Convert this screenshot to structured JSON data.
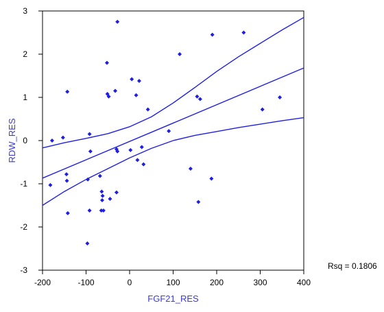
{
  "chart_data": {
    "type": "scatter",
    "xlabel": "FGF21_RES",
    "ylabel": "RDW_RES",
    "xlim": [
      -200,
      400
    ],
    "ylim": [
      -3,
      3
    ],
    "x_ticks": [
      -200,
      -100,
      0,
      100,
      200,
      300,
      400
    ],
    "x_tick_labels": [
      "-200",
      "-100",
      "0",
      "100",
      "200",
      "300",
      "400"
    ],
    "y_ticks": [
      -3,
      -2,
      -1,
      0,
      1,
      2,
      3
    ],
    "y_tick_labels": [
      "-3",
      "-2",
      "-1",
      "0",
      "1",
      "2",
      "3"
    ],
    "annotation": "Rsq = 0.1806",
    "colors": {
      "points": "#1f1fe0",
      "lines": "#1f1fe0",
      "axis_title": "#3a3ad8",
      "axes": "#000000"
    },
    "points": [
      {
        "x": -28,
        "y": 2.75
      },
      {
        "x": 190,
        "y": 2.45
      },
      {
        "x": 262,
        "y": 2.5
      },
      {
        "x": 115,
        "y": 2.0
      },
      {
        "x": -52,
        "y": 1.8
      },
      {
        "x": 5,
        "y": 1.42
      },
      {
        "x": 22,
        "y": 1.38
      },
      {
        "x": -143,
        "y": 1.13
      },
      {
        "x": -33,
        "y": 1.15
      },
      {
        "x": -51,
        "y": 1.08
      },
      {
        "x": -48,
        "y": 1.02
      },
      {
        "x": 15,
        "y": 1.05
      },
      {
        "x": 155,
        "y": 1.02
      },
      {
        "x": 162,
        "y": 0.96
      },
      {
        "x": 42,
        "y": 0.72
      },
      {
        "x": 305,
        "y": 0.72
      },
      {
        "x": 345,
        "y": 1.0
      },
      {
        "x": 90,
        "y": 0.22
      },
      {
        "x": -178,
        "y": 0.0
      },
      {
        "x": -153,
        "y": 0.07
      },
      {
        "x": -92,
        "y": 0.15
      },
      {
        "x": -90,
        "y": -0.25
      },
      {
        "x": -30,
        "y": -0.2
      },
      {
        "x": -28,
        "y": -0.25
      },
      {
        "x": 2,
        "y": -0.22
      },
      {
        "x": 28,
        "y": -0.15
      },
      {
        "x": 18,
        "y": -0.45
      },
      {
        "x": 32,
        "y": -0.55
      },
      {
        "x": -145,
        "y": -0.78
      },
      {
        "x": -144,
        "y": -0.93
      },
      {
        "x": -182,
        "y": -1.03
      },
      {
        "x": -96,
        "y": -0.9
      },
      {
        "x": -68,
        "y": -0.82
      },
      {
        "x": 140,
        "y": -0.65
      },
      {
        "x": 188,
        "y": -0.88
      },
      {
        "x": -64,
        "y": -1.18
      },
      {
        "x": -62,
        "y": -1.28
      },
      {
        "x": -63,
        "y": -1.38
      },
      {
        "x": -45,
        "y": -1.35
      },
      {
        "x": -30,
        "y": -1.2
      },
      {
        "x": 158,
        "y": -1.42
      },
      {
        "x": -92,
        "y": -1.62
      },
      {
        "x": -65,
        "y": -1.62
      },
      {
        "x": -60,
        "y": -1.62
      },
      {
        "x": -142,
        "y": -1.68
      },
      {
        "x": -97,
        "y": -2.38
      }
    ],
    "fit_line": {
      "x": [
        -200,
        400
      ],
      "y": [
        -0.87,
        1.68
      ]
    },
    "ci_upper": {
      "x": [
        -200,
        -150,
        -100,
        -50,
        0,
        50,
        100,
        150,
        200,
        250,
        300,
        350,
        400
      ],
      "y": [
        -0.17,
        -0.05,
        0.05,
        0.16,
        0.32,
        0.55,
        0.87,
        1.23,
        1.6,
        1.94,
        2.25,
        2.56,
        2.85
      ]
    },
    "ci_lower": {
      "x": [
        -200,
        -150,
        -100,
        -50,
        0,
        50,
        100,
        150,
        200,
        250,
        300,
        350,
        400
      ],
      "y": [
        -1.5,
        -1.18,
        -0.9,
        -0.65,
        -0.4,
        -0.18,
        0.0,
        0.12,
        0.21,
        0.3,
        0.38,
        0.46,
        0.53
      ]
    }
  }
}
